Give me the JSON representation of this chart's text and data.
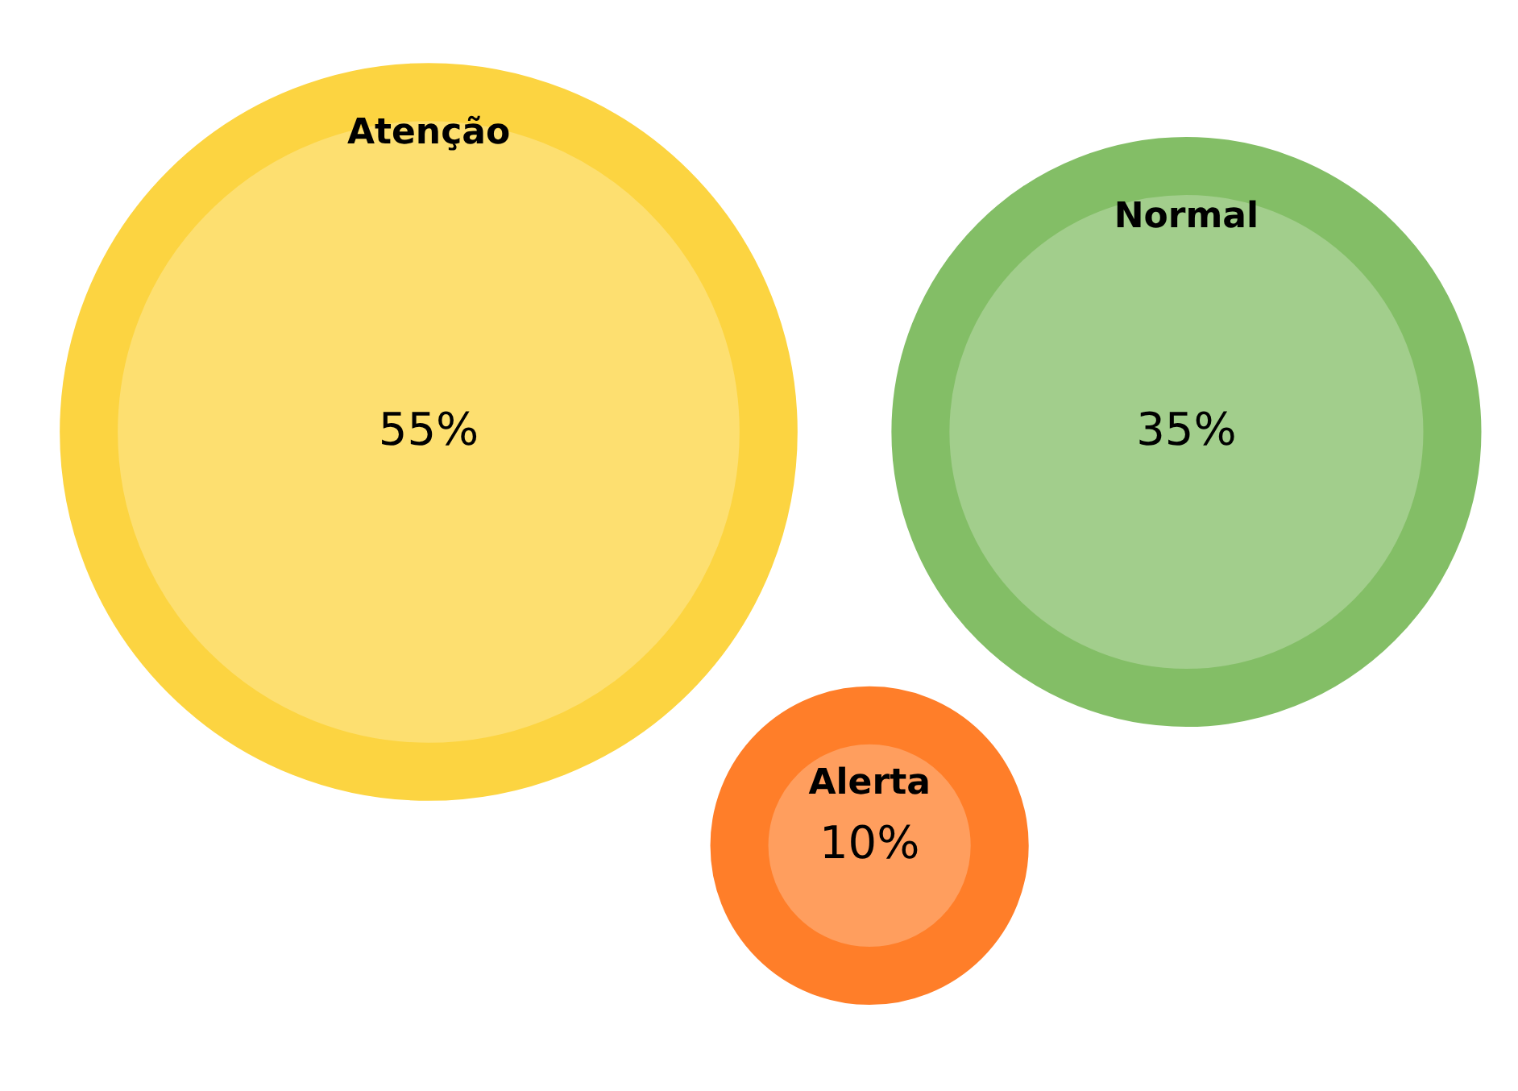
{
  "chart_data": {
    "type": "other",
    "categories": [
      "Atenção",
      "Normal",
      "Alerta"
    ],
    "values": [
      55,
      35,
      10
    ],
    "value_labels": [
      "55%",
      "35%",
      "10%"
    ],
    "colors": [
      "#fddf70",
      "#a2ce8c",
      "#ff9e5e"
    ]
  }
}
